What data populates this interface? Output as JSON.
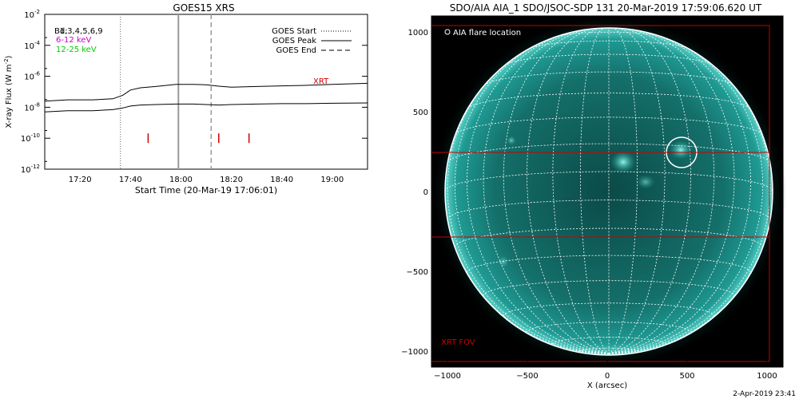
{
  "goes": {
    "title": "GOES15 XRS",
    "xlabel": "Start Time (20-Mar-19 17:06:01)",
    "ylabel": "X-ray Flux (W m",
    "ylabel_sup": "-2",
    "ylabel_close": ")",
    "bands_label": "Bd:",
    "detectors": "1,3,4,5,6,9",
    "band_low": "6-12 keV",
    "band_high": "12-25 keV",
    "band_low_color": "#cc00cc",
    "band_high_color": "#00cc00",
    "xrt_label": "XRT",
    "legend": [
      {
        "label": "GOES Start",
        "style": "dotted"
      },
      {
        "label": "GOES Peak",
        "style": "solid"
      },
      {
        "label": "GOES End",
        "style": "dashed"
      }
    ]
  },
  "aia": {
    "title": "SDO/AIA AIA_1 SDO/JSOC-SDP 131 20-Mar-2019 17:59:06.620 UT",
    "legend_label": "AIA flare location",
    "fov_label": "XRT FOV",
    "xlabel": "X (arcsec)",
    "disk_color": "#1f8f8a"
  },
  "footer_timestamp": "2-Apr-2019 23:41",
  "chart_data": [
    {
      "type": "line",
      "title": "GOES15 XRS",
      "xlabel": "Start Time (20-Mar-19 17:06:01)",
      "ylabel": "X-ray Flux (W m^-2)",
      "y_scale": "log",
      "xlim": [
        "17:06",
        "19:14"
      ],
      "ylim": [
        1e-12,
        0.01
      ],
      "x_ticks": [
        "17:20",
        "17:40",
        "18:00",
        "18:20",
        "18:40",
        "19:00"
      ],
      "y_ticks": [
        "10^-12",
        "10^-10",
        "10^-8",
        "10^-6",
        "10^-4",
        "10^-2"
      ],
      "series": [
        {
          "name": "",
          "x": [
            "17:06",
            "17:15",
            "17:25",
            "17:33",
            "17:37",
            "17:40",
            "17:44",
            "17:50",
            "17:58",
            "18:05",
            "18:10",
            "18:15",
            "18:20",
            "18:30",
            "18:40",
            "18:50",
            "19:00",
            "19:14"
          ],
          "values": [
            2.5e-08,
            3e-08,
            3e-08,
            3.5e-08,
            6e-08,
            1.3e-07,
            1.8e-07,
            2.2e-07,
            3e-07,
            3e-07,
            2.8e-07,
            2.3e-07,
            2e-07,
            2.2e-07,
            2.4e-07,
            2.6e-07,
            3e-07,
            3.5e-07
          ]
        },
        {
          "name": "",
          "x": [
            "17:06",
            "17:15",
            "17:25",
            "17:33",
            "17:37",
            "17:40",
            "17:44",
            "17:50",
            "17:58",
            "18:05",
            "18:10",
            "18:15",
            "18:20",
            "18:30",
            "18:40",
            "18:50",
            "19:00",
            "19:14"
          ],
          "values": [
            5e-09,
            6e-09,
            6e-09,
            7e-09,
            9e-09,
            1.2e-08,
            1.4e-08,
            1.5e-08,
            1.6e-08,
            1.6e-08,
            1.5e-08,
            1.4e-08,
            1.5e-08,
            1.6e-08,
            1.7e-08,
            1.7e-08,
            1.8e-08,
            1.9e-08
          ]
        }
      ],
      "vertical_markers": [
        {
          "label": "GOES Start",
          "time": "17:36",
          "style": "dotted"
        },
        {
          "label": "GOES Peak",
          "time": "17:59",
          "style": "solid"
        },
        {
          "label": "GOES End",
          "time": "18:12",
          "style": "dashed"
        }
      ],
      "xrt_ticks": [
        "17:47",
        "18:15",
        "18:27"
      ],
      "legend_position": "top-right",
      "grid": false
    },
    {
      "type": "image",
      "title": "SDO/AIA AIA_1 SDO/JSOC-SDP 131 20-Mar-2019 17:59:06.620 UT",
      "xlabel": "X (arcsec)",
      "xlim": [
        -1100,
        1100
      ],
      "ylim": [
        -1100,
        1100
      ],
      "x_ticks": [
        -1000,
        -500,
        0,
        500,
        1000
      ],
      "y_ticks": [
        -1000,
        -500,
        0,
        500,
        1000
      ],
      "solar_radius_arcsec": 1000,
      "flare_location": {
        "x": 480,
        "y": 245,
        "radius": 100
      },
      "xrt_fov": {
        "x_range": [
          -1100,
          1000
        ],
        "y_range": [
          -285,
          245
        ]
      },
      "grid_spacing_deg": 10
    }
  ]
}
